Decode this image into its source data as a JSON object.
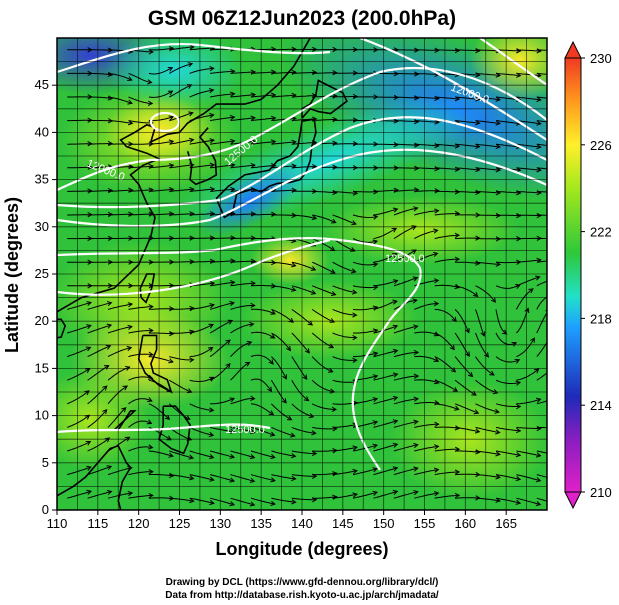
{
  "title": "GSM 06Z12Jun2023 (200.0hPa)",
  "x_axis_label": "Longitude (degrees)",
  "y_axis_label": "Latitude  (degrees)",
  "x_ticks": [
    "110",
    "115",
    "120",
    "125",
    "130",
    "135",
    "140",
    "145",
    "150",
    "155",
    "160",
    "165"
  ],
  "y_ticks": [
    "0",
    "5",
    "10",
    "15",
    "20",
    "25",
    "30",
    "35",
    "40",
    "45"
  ],
  "colorbar_ticks": [
    "210",
    "214",
    "218",
    "222",
    "226",
    "230"
  ],
  "contour_labels": [
    "12000.0",
    "12000.0",
    "12500.0",
    "12500.0",
    "12500.0"
  ],
  "credits": [
    "Drawing by DCL (https://www.gfd-dennou.org/library/dcl/)",
    "Data from http://database.rish.kyoto-u.ac.jp/arch/jmadata/"
  ],
  "map": {
    "lon_range": [
      110,
      170
    ],
    "lat_range": [
      0,
      50
    ],
    "colorbar_range": [
      210,
      230
    ],
    "background": "#2fc23a",
    "colors": {
      "cb_stops": [
        "#e020c8",
        "#1e2ab8",
        "#1ea0ff",
        "#22e0c8",
        "#2ec83a",
        "#a4e81e",
        "#fff02a",
        "#ff9a1e",
        "#f03a22"
      ]
    }
  }
}
